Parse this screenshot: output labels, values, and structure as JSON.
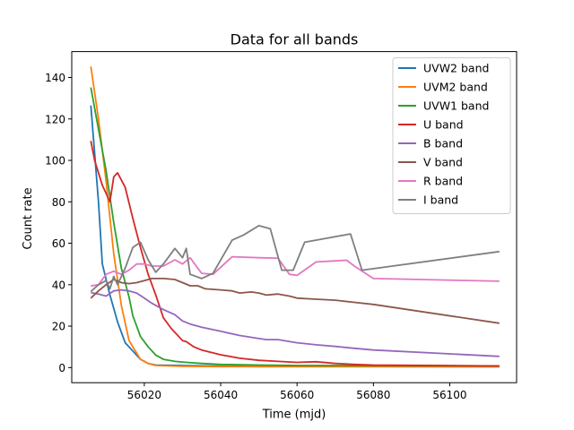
{
  "chart_data": {
    "type": "line",
    "title": "Data for all bands",
    "xlabel": "Time (mjd)",
    "ylabel": "Count rate",
    "xlim": [
      56001,
      56117.5
    ],
    "ylim": [
      -7.3,
      152.5
    ],
    "xticks": [
      56020,
      56040,
      56060,
      56080,
      56100
    ],
    "yticks": [
      0,
      20,
      40,
      60,
      80,
      100,
      120,
      140
    ],
    "grid": false,
    "legend_position": "top-right",
    "series": [
      {
        "name": "UVW2 band",
        "color": "#1f77b4",
        "x": [
          56006,
          56008,
          56009,
          56011,
          56013,
          56015,
          56017,
          56019,
          56021,
          56023,
          56030,
          56040,
          56050,
          56060,
          56070,
          56113
        ],
        "y": [
          126.5,
          80,
          50,
          35,
          22,
          12,
          8,
          4,
          2,
          1.2,
          1,
          0.7,
          0.5,
          0.5,
          0.5,
          0.4
        ]
      },
      {
        "name": "UVM2 band",
        "color": "#ff7f0e",
        "x": [
          56006,
          56008,
          56010,
          56012,
          56014,
          56016,
          56019,
          56021,
          56023,
          56030,
          56040,
          56050,
          56060,
          56070,
          56113
        ],
        "y": [
          145.3,
          120,
          90,
          55,
          30,
          13,
          4,
          2,
          1,
          0.6,
          0.5,
          0.5,
          0.5,
          0.5,
          0.4
        ]
      },
      {
        "name": "UVW1 band",
        "color": "#2ca02c",
        "x": [
          56006,
          56008,
          56010,
          56012,
          56014,
          56016,
          56017,
          56019,
          56021,
          56023,
          56025,
          56028,
          56031,
          56035,
          56040,
          56050,
          56060,
          56070,
          56113
        ],
        "y": [
          135.2,
          115,
          95,
          70,
          48,
          34,
          25,
          15,
          10,
          6,
          4,
          3,
          2.5,
          2,
          1.5,
          1.2,
          1,
          1,
          0.8
        ]
      },
      {
        "name": "U band",
        "color": "#d62728",
        "x": [
          56006,
          56007,
          56009,
          56011,
          56012,
          56013,
          56015,
          56017,
          56019,
          56021,
          56023,
          56025,
          56027,
          56030,
          56031,
          56033,
          56035,
          56040,
          56045,
          56050,
          56055,
          56060,
          56065,
          56070,
          56075,
          56080,
          56113
        ],
        "y": [
          109.4,
          100,
          88,
          80,
          92,
          94,
          87,
          72,
          58,
          45,
          35,
          24,
          19,
          13,
          12.5,
          10,
          8.5,
          6.2,
          4.5,
          3.5,
          3,
          2.5,
          2.8,
          2,
          1.5,
          1.2,
          0.8
        ]
      },
      {
        "name": "B band",
        "color": "#9467bd",
        "x": [
          56006,
          56008,
          56010,
          56012,
          56014,
          56016,
          56018,
          56020,
          56022,
          56025,
          56028,
          56030,
          56032,
          56035,
          56040,
          56045,
          56050,
          56052,
          56055,
          56060,
          56065,
          56070,
          56075,
          56080,
          56113
        ],
        "y": [
          36.2,
          35.5,
          34.5,
          37,
          37.5,
          37,
          36,
          33.5,
          31,
          28,
          25.5,
          22.5,
          21,
          19.5,
          17.5,
          15.5,
          14,
          13.5,
          13.5,
          12,
          11,
          10.2,
          9.3,
          8.5,
          5.4
        ]
      },
      {
        "name": "V band",
        "color": "#8c564b",
        "x": [
          56006,
          56008,
          56010,
          56012,
          56014,
          56016,
          56018,
          56020,
          56022,
          56025,
          56028,
          56030,
          56032,
          56034,
          56036,
          56040,
          56043,
          56045,
          56048,
          56050,
          56052,
          56055,
          56058,
          56060,
          56065,
          56070,
          56075,
          56080,
          56113
        ],
        "y": [
          33.5,
          37,
          40,
          42.5,
          41,
          40.5,
          41,
          42,
          43,
          43,
          42.5,
          41,
          39.5,
          39.5,
          38,
          37.5,
          37,
          36,
          36.5,
          36,
          35,
          35.5,
          34.5,
          33.5,
          33,
          32.5,
          31.5,
          30.5,
          21.4
        ]
      },
      {
        "name": "R band",
        "color": "#e377c2",
        "x": [
          56006,
          56008,
          56010,
          56012,
          56014,
          56016,
          56018,
          56020,
          56022,
          56025,
          56028,
          56030,
          56032,
          56035,
          56038,
          56043,
          56050,
          56055,
          56058,
          56060,
          56065,
          56070,
          56073,
          56075,
          56080,
          56113
        ],
        "y": [
          39.4,
          40,
          45,
          46.5,
          45,
          47,
          50,
          50,
          49,
          49,
          52,
          50,
          53,
          45.5,
          45,
          53.5,
          53,
          52.8,
          45,
          44.5,
          51,
          51.5,
          51.8,
          49,
          43,
          41.7
        ]
      },
      {
        "name": "I band",
        "color": "#7f7f7f",
        "x": [
          56006,
          56008,
          56010,
          56011,
          56012,
          56013,
          56015,
          56017,
          56019,
          56021,
          56023,
          56025,
          56028,
          56030,
          56031,
          56032,
          56035,
          56038,
          56043,
          56046,
          56050,
          56053,
          56056,
          56059,
          56062,
          56068,
          56074,
          56077,
          56113
        ],
        "y": [
          36.7,
          40,
          42,
          38,
          44,
          40,
          48,
          58,
          60.5,
          52,
          46,
          50,
          57.5,
          53,
          57.5,
          45,
          43,
          45.5,
          61.5,
          64,
          68.5,
          67,
          47,
          47,
          60.5,
          62.5,
          64.5,
          47,
          56
        ]
      }
    ]
  }
}
